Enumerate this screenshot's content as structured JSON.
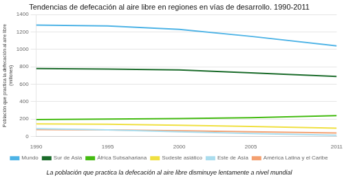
{
  "chart_data": {
    "type": "line",
    "title": "Tendencias de defecación al aire libre en regiones en vías de desarrollo. 1990-2011",
    "subtitle": "La población que practica la defecación al aire libre disminuye lentamente a nivel mundial",
    "ylabel": [
      "Población que practica la defecación al aire libre",
      "(millones)"
    ],
    "x": [
      1990,
      1995,
      2000,
      2005,
      2011
    ],
    "series": [
      {
        "name": "Mundo",
        "color": "#4db3e6",
        "values": [
          1280,
          1270,
          1230,
          1150,
          1040
        ]
      },
      {
        "name": "Sur de Asia",
        "color": "#1a6b2a",
        "values": [
          780,
          775,
          765,
          730,
          690
        ]
      },
      {
        "name": "África Subsahariana",
        "color": "#44bb11",
        "values": [
          195,
          200,
          205,
          215,
          240
        ]
      },
      {
        "name": "Sudeste asiático",
        "color": "#f0e040",
        "values": [
          145,
          140,
          130,
          115,
          95
        ]
      },
      {
        "name": "Este de Asia",
        "color": "#aaddee",
        "values": [
          90,
          75,
          55,
          35,
          15
        ]
      },
      {
        "name": "América Latina y el Caribe",
        "color": "#f4a070",
        "values": [
          80,
          75,
          65,
          55,
          40
        ]
      }
    ],
    "xlim": [
      1990,
      2011
    ],
    "xticks": [
      1990,
      1995,
      2000,
      2005,
      2011
    ],
    "ylim": [
      0,
      1400
    ],
    "yticks": [
      0,
      200,
      400,
      600,
      800,
      1000,
      1200,
      1400
    ],
    "grid": "y",
    "legend": "bottom"
  }
}
